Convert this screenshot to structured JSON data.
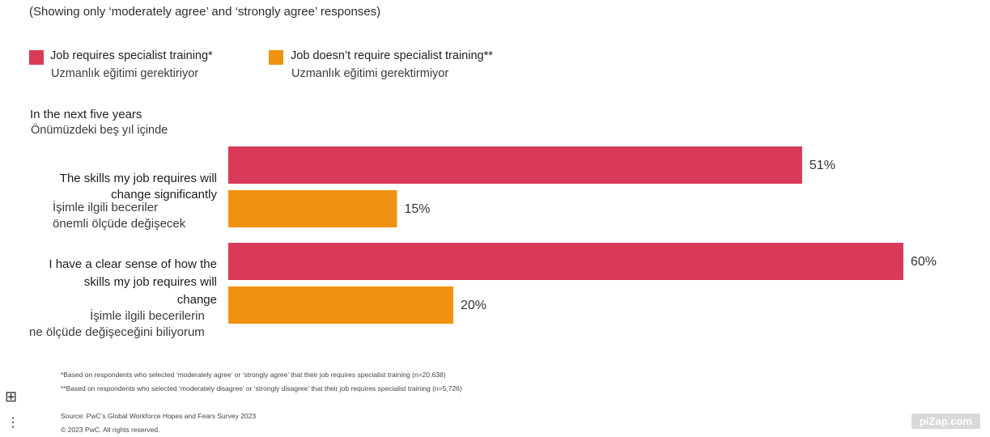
{
  "subtitle": "(Showing only ‘moderately agree’ and ‘strongly agree’ responses)",
  "legend": [
    {
      "label": "Job requires specialist training*",
      "label_tr": "Uzmanlık eğitimi gerektiriyor",
      "color": "#d93a58"
    },
    {
      "label": "Job doesn’t require specialist training**",
      "label_tr": "Uzmanlık eğitimi gerektirmiyor",
      "color": "#f0920f"
    }
  ],
  "section": {
    "label": "In the next five years",
    "label_tr": "Önümüzdeki beş yıl içinde"
  },
  "categories": [
    {
      "label_lines": [
        "The skills my job requires will",
        "change significantly"
      ],
      "label_tr_lines": [
        "İşimle ilgili beceriler",
        "önemli ölçüde değişecek"
      ]
    },
    {
      "label_lines": [
        "I have a clear sense of how the",
        "skills my job requires will",
        "change"
      ],
      "label_tr_lines": [
        "İşimle ilgili becerilerin",
        "ne ölçüde değişeceğini biliyorum"
      ]
    }
  ],
  "footnotes": [
    "*Based on respondents who selected ‘moderately agree’ or ‘strongly agree’ that their job requires specialist training (n=20,638)",
    "**Based on respondents who selected ‘moderately disagree’ or ‘strongly disagree’ that their job requires specialist training (n=5,726)"
  ],
  "source": "Source: PwC’s Global Workforce Hopes and Fears Survey 2023",
  "copyright": "© 2023 PwC. All rights reserved.",
  "watermark": "piZap.com",
  "icons": {
    "side_icon": "grid-icon",
    "side_dots": "dots-icon"
  },
  "chart_data": {
    "type": "bar",
    "orientation": "horizontal",
    "categories": [
      "The skills my job requires will change significantly",
      "I have a clear sense of how the skills my job requires will change"
    ],
    "series": [
      {
        "name": "Job requires specialist training*",
        "values": [
          51,
          60
        ],
        "color": "#d93a58"
      },
      {
        "name": "Job doesn’t require specialist training**",
        "values": [
          15,
          20
        ],
        "color": "#f0920f"
      }
    ],
    "value_suffix": "%",
    "xlim": [
      0,
      100
    ],
    "grid": false,
    "legend_position": "top-left"
  }
}
